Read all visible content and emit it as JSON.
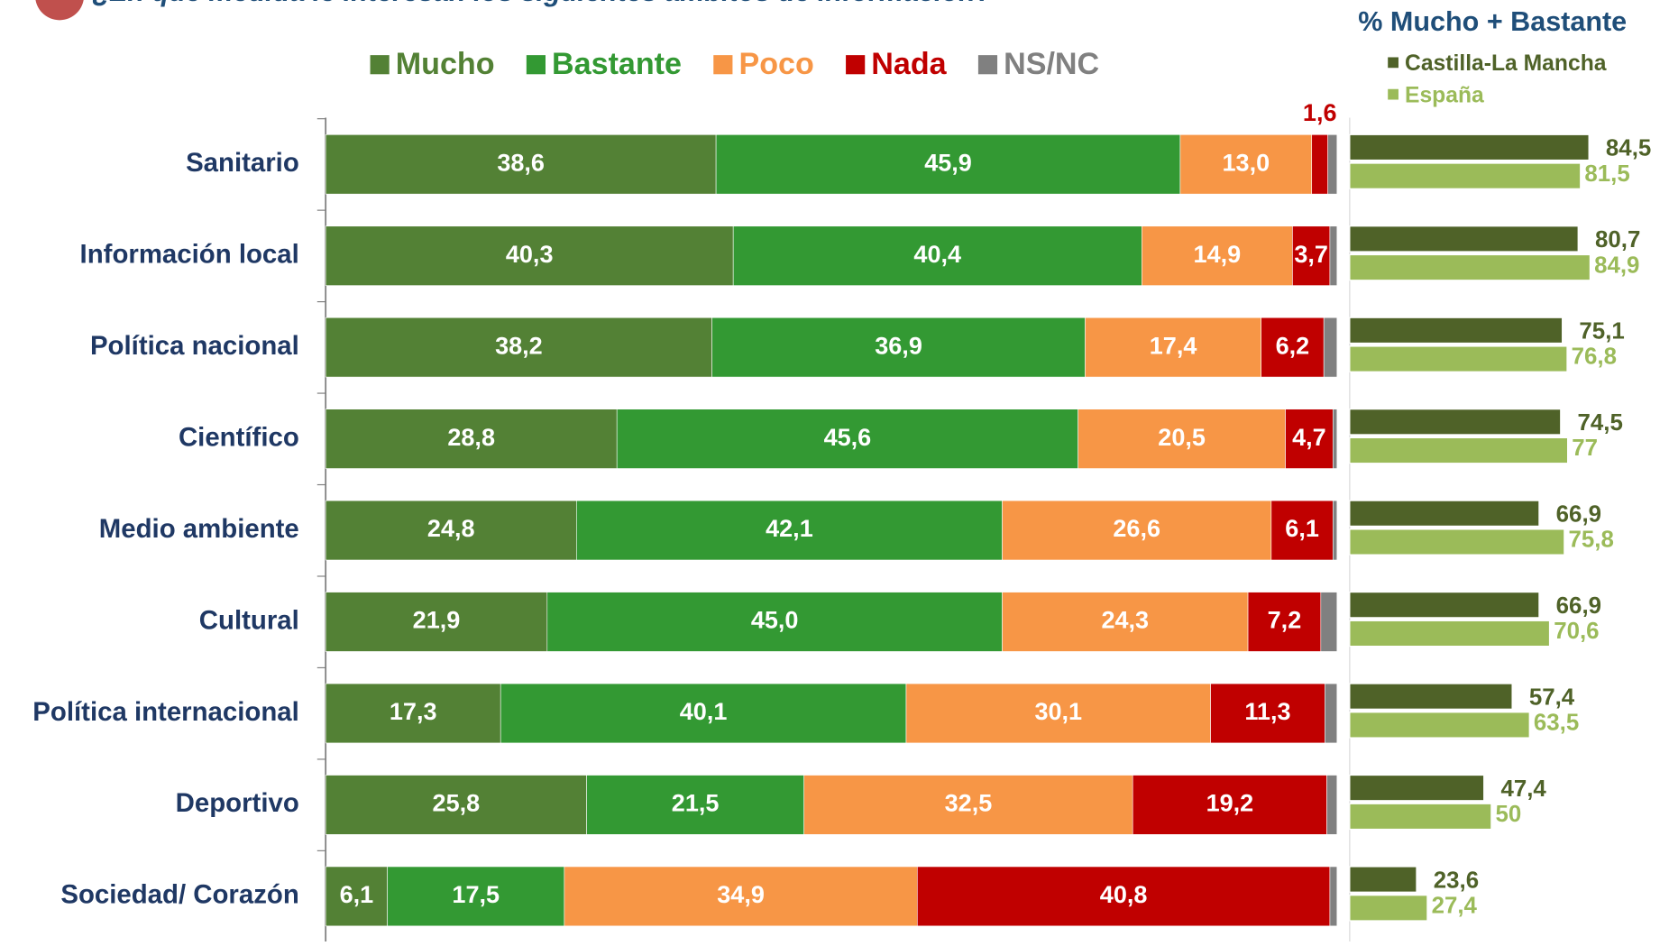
{
  "chart_data": [
    {
      "type": "stacked_bar",
      "orientation": "horizontal",
      "title": "¿En qué medida le interesan los siguientes ámbitos de información?",
      "categories": [
        "Sanitario",
        "Información local",
        "Política nacional",
        "Científico",
        "Medio ambiente",
        "Cultural",
        "Política internacional",
        "Deportivo",
        "Sociedad/ Corazón"
      ],
      "xlim": [
        0,
        100
      ],
      "series": [
        {
          "name": "Mucho",
          "color": "#538135",
          "values": [
            38.6,
            40.3,
            38.2,
            28.8,
            24.8,
            21.9,
            17.3,
            25.8,
            6.1
          ],
          "value_labels": [
            "38,6",
            "40,3",
            "38,2",
            "28,8",
            "24,8",
            "21,9",
            "17,3",
            "25,8",
            "6,1"
          ]
        },
        {
          "name": "Bastante",
          "color": "#339933",
          "values": [
            45.9,
            40.4,
            36.9,
            45.6,
            42.1,
            45.0,
            40.1,
            21.5,
            17.5
          ],
          "value_labels": [
            "45,9",
            "40,4",
            "36,9",
            "45,6",
            "42,1",
            "45,0",
            "40,1",
            "21,5",
            "17,5"
          ]
        },
        {
          "name": "Poco",
          "color": "#f79646",
          "values": [
            13.0,
            14.9,
            17.4,
            20.5,
            26.6,
            24.3,
            30.1,
            32.5,
            34.9
          ],
          "value_labels": [
            "13,0",
            "14,9",
            "17,4",
            "20,5",
            "26,6",
            "24,3",
            "30,1",
            "32,5",
            "34,9"
          ]
        },
        {
          "name": "Nada",
          "color": "#c00000",
          "values": [
            1.6,
            3.7,
            6.2,
            4.7,
            6.1,
            7.2,
            11.3,
            19.2,
            40.8
          ],
          "value_labels": [
            "1,6",
            "3,7",
            "6,2",
            "4,7",
            "6,1",
            "7,2",
            "11,3",
            "19,2",
            "40,8"
          ]
        },
        {
          "name": "NS/NC",
          "color": "#808080",
          "values": [
            0.9,
            0.7,
            1.3,
            0.4,
            0.4,
            1.6,
            1.2,
            1.0,
            0.7
          ]
        }
      ]
    },
    {
      "type": "bar",
      "orientation": "horizontal",
      "title": "% Mucho + Bastante",
      "xlim": [
        0,
        100
      ],
      "series": [
        {
          "name": "Castilla-La Mancha",
          "color": "#4f6228",
          "values": [
            84.5,
            80.7,
            75.1,
            74.5,
            66.9,
            66.9,
            57.4,
            47.4,
            23.6
          ],
          "value_labels": [
            "84,5",
            "80,7",
            "75,1",
            "74,5",
            "66,9",
            "66,9",
            "57,4",
            "47,4",
            "23,6"
          ]
        },
        {
          "name": "España",
          "color": "#9bbb59",
          "values": [
            81.5,
            84.9,
            76.8,
            77,
            75.8,
            70.6,
            63.5,
            50,
            27.4
          ],
          "value_labels": [
            "81,5",
            "84,9",
            "76,8",
            "77",
            "75,8",
            "70,6",
            "63,5",
            "50",
            "27,4"
          ]
        }
      ]
    }
  ]
}
